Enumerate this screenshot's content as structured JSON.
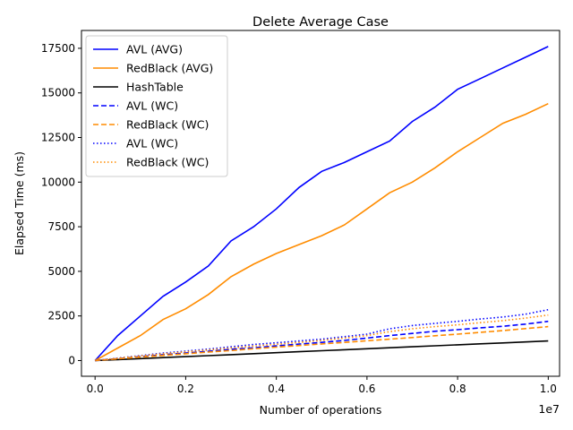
{
  "chart_data": {
    "type": "line",
    "title": "Delete Average Case",
    "xlabel": "Number of operations",
    "ylabel": "Elapsed Time (ms)",
    "x_offset_label": "1e7",
    "xlim": [
      -300000,
      10250000
    ],
    "ylim": [
      -880,
      18500
    ],
    "xticks": [
      0,
      2000000,
      4000000,
      6000000,
      8000000,
      10000000
    ],
    "xtick_labels": [
      "0.0",
      "0.2",
      "0.4",
      "0.6",
      "0.8",
      "1.0"
    ],
    "yticks": [
      0,
      2500,
      5000,
      7500,
      10000,
      12500,
      15000,
      17500
    ],
    "ytick_labels": [
      "0",
      "2500",
      "5000",
      "7500",
      "10000",
      "12500",
      "15000",
      "17500"
    ],
    "grid": false,
    "legend_position": "top-left",
    "x": [
      0,
      500000,
      1000000,
      1500000,
      2000000,
      2500000,
      3000000,
      3500000,
      4000000,
      4500000,
      5000000,
      5500000,
      6000000,
      6500000,
      7000000,
      7500000,
      8000000,
      8500000,
      9000000,
      9500000,
      10000000
    ],
    "series": [
      {
        "name": "AVL (AVG)",
        "color": "#0000ff",
        "style": "solid",
        "values": [
          0,
          1400,
          2500,
          3600,
          4400,
          5300,
          6700,
          7500,
          8500,
          9700,
          10600,
          11100,
          11700,
          12300,
          13400,
          14200,
          15200,
          15800,
          16400,
          17000,
          17600
        ]
      },
      {
        "name": "RedBlack (AVG)",
        "color": "#ff8c00",
        "style": "solid",
        "values": [
          0,
          700,
          1400,
          2300,
          2900,
          3700,
          4700,
          5400,
          6000,
          6500,
          7000,
          7600,
          8500,
          9400,
          10000,
          10800,
          11700,
          12500,
          13300,
          13800,
          14400
        ]
      },
      {
        "name": "HashTable",
        "color": "#000000",
        "style": "solid",
        "values": [
          0,
          55,
          110,
          165,
          220,
          275,
          330,
          385,
          440,
          495,
          550,
          605,
          660,
          715,
          770,
          825,
          880,
          935,
          990,
          1045,
          1100
        ]
      },
      {
        "name": "AVL (WC)",
        "color": "#0000ff",
        "style": "dashed",
        "values": [
          0,
          110,
          220,
          330,
          420,
          520,
          630,
          710,
          820,
          920,
          1020,
          1130,
          1260,
          1400,
          1520,
          1640,
          1730,
          1830,
          1920,
          2040,
          2200
        ]
      },
      {
        "name": "RedBlack (WC)",
        "color": "#ff8c00",
        "style": "dashed",
        "values": [
          0,
          95,
          190,
          285,
          380,
          475,
          560,
          660,
          750,
          840,
          930,
          1020,
          1110,
          1200,
          1290,
          1390,
          1480,
          1580,
          1680,
          1790,
          1900
        ]
      },
      {
        "name": "AVL (WC)",
        "color": "#0000ff",
        "style": "dotted",
        "values": [
          0,
          140,
          280,
          420,
          530,
          640,
          770,
          900,
          1000,
          1100,
          1200,
          1340,
          1480,
          1780,
          1960,
          2080,
          2200,
          2330,
          2440,
          2600,
          2850
        ]
      },
      {
        "name": "RedBlack (WC)",
        "color": "#ff8c00",
        "style": "dotted",
        "values": [
          0,
          130,
          260,
          380,
          490,
          590,
          700,
          810,
          910,
          1020,
          1130,
          1260,
          1400,
          1620,
          1780,
          1900,
          2000,
          2120,
          2240,
          2380,
          2550
        ]
      }
    ]
  }
}
